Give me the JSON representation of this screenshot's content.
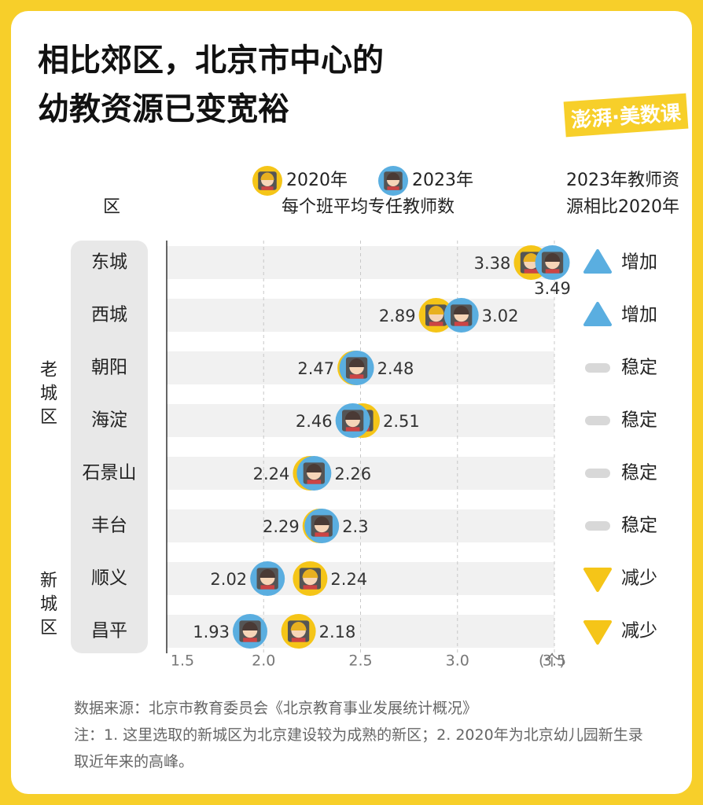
{
  "chart_data": {
    "type": "dumbbell",
    "title": [
      "相比郊区，北京市中心的",
      "幼教资源已变宽裕"
    ],
    "logo": "澎湃·美数课",
    "category_header": "区",
    "value_header": "每个班平均专任教师数",
    "trend_header": [
      "2023年教师资",
      "源相比2020年"
    ],
    "categories": [
      "东城",
      "西城",
      "朝阳",
      "海淀",
      "石景山",
      "丰台",
      "顺义",
      "昌平"
    ],
    "groups": [
      {
        "name": "老城区",
        "from": 0,
        "to": 5
      },
      {
        "name": "新城区",
        "from": 6,
        "to": 7
      }
    ],
    "series": [
      {
        "name": "2020年",
        "color": "#f5c518",
        "values": [
          3.38,
          2.89,
          2.47,
          2.51,
          2.24,
          2.29,
          2.24,
          2.18
        ]
      },
      {
        "name": "2023年",
        "color": "#5aaee0",
        "values": [
          3.49,
          3.02,
          2.48,
          2.46,
          2.26,
          2.3,
          2.02,
          1.93
        ]
      }
    ],
    "trend": [
      "增加",
      "增加",
      "稳定",
      "稳定",
      "稳定",
      "稳定",
      "减少",
      "减少"
    ],
    "xlim": [
      1.5,
      3.5
    ],
    "xticks": [
      {
        "value": 1.5,
        "label": "1.5"
      },
      {
        "value": 2.0,
        "label": "2.0"
      },
      {
        "value": 2.5,
        "label": "2.5"
      },
      {
        "value": 3.0,
        "label": "3.0"
      },
      {
        "value": 3.5,
        "label": "3.5"
      }
    ],
    "x_unit": "(个)",
    "grid": true,
    "source": "数据来源：北京市教育委员会《北京教育事业发展统计概况》",
    "note": "注：1. 这里选取的新城区为北京建设较为成熟的新区；2. 2020年为北京幼儿园新生录取近年来的高峰。"
  }
}
